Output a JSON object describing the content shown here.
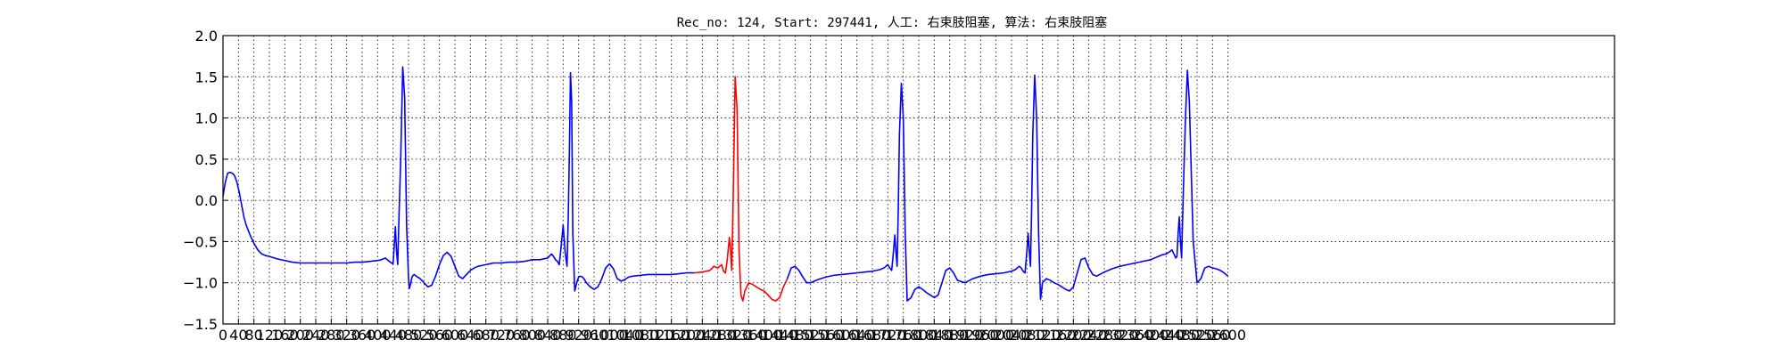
{
  "chart_data": {
    "type": "line",
    "title": "Rec_no: 124, Start: 297441, 人工: 右束肢阻塞, 算法: 右束肢阻塞",
    "xlabel": "",
    "ylabel": "",
    "xlim": [
      0,
      3600
    ],
    "ylim": [
      -1.5,
      2.0
    ],
    "grid": true,
    "x_tick_values": [
      0,
      40,
      80,
      120,
      160,
      200,
      240,
      280,
      320,
      360,
      400,
      440,
      480,
      520,
      560,
      600,
      640,
      680,
      720,
      760,
      800,
      840,
      880,
      920,
      960,
      1000,
      1040,
      1080,
      1120,
      1160,
      1200,
      1240,
      1280,
      1320,
      1360,
      1400,
      1440,
      1480,
      1520,
      1560,
      1600,
      1640,
      1680,
      1720,
      1760,
      1800,
      1840,
      1880,
      1920,
      1960,
      2000,
      2040,
      2080,
      2120,
      2160,
      2200,
      2240,
      2280,
      2320,
      2360,
      2400,
      2440,
      2480,
      2520,
      2560,
      2600
    ],
    "x_tick_labels": [
      "0",
      "40",
      "80",
      "120",
      "160",
      "200",
      "240",
      "280",
      "320",
      "360",
      "400",
      "440",
      "480",
      "520",
      "560",
      "600",
      "640",
      "680",
      "720",
      "760",
      "800",
      "840",
      "880",
      "920",
      "960",
      "1000",
      "1040",
      "1080",
      "1120",
      "1160",
      "1200",
      "1240",
      "1280",
      "1320",
      "1360",
      "1400",
      "1440",
      "1480",
      "1520",
      "1560",
      "1600",
      "1640",
      "1680",
      "1720",
      "1760",
      "1800",
      "1840",
      "1880",
      "1920",
      "1960",
      "2000",
      "2040",
      "2080",
      "2120",
      "2160",
      "2200",
      "2240",
      "2280",
      "2320",
      "2360",
      "2400",
      "2440",
      "2480",
      "2520",
      "2560",
      "2600"
    ],
    "y_ticks": [
      2.0,
      1.5,
      1.0,
      0.5,
      0.0,
      -0.5,
      -1.0,
      -1.5
    ],
    "y_tick_labels": [
      "2.0",
      "1.5",
      "1.0",
      "0.5",
      "0.0",
      "−0.5",
      "−1.0",
      "−1.5"
    ],
    "series": [
      {
        "color": "#0000ff",
        "x": [
          0,
          6,
          12,
          18,
          24,
          30,
          36,
          42,
          48,
          54,
          60,
          70,
          80,
          90,
          100,
          110,
          120,
          140,
          160,
          180,
          200,
          220,
          240,
          260,
          280,
          300,
          320,
          340,
          360,
          380,
          400,
          410,
          420,
          430,
          440,
          443,
          446,
          449,
          452,
          455,
          460,
          465,
          470,
          475,
          480,
          482,
          485,
          488,
          490,
          492,
          495,
          500,
          510,
          520,
          530,
          540,
          550,
          560,
          570,
          580,
          590,
          600,
          610,
          620,
          630,
          640,
          650,
          660,
          670,
          680,
          690,
          700,
          720,
          740,
          760,
          780,
          800,
          820,
          840,
          850,
          855,
          860,
          865,
          870,
          875,
          880,
          885,
          890,
          893,
          896,
          899,
          902,
          905,
          910,
          915,
          920,
          925,
          930,
          935,
          940,
          950,
          960,
          970,
          980,
          990,
          1000,
          1010,
          1020,
          1030,
          1040,
          1050,
          1060,
          1080,
          1100,
          1120,
          1140,
          1160,
          1180,
          1200,
          1220
        ],
        "y": [
          0.05,
          0.22,
          0.33,
          0.34,
          0.33,
          0.3,
          0.22,
          0.1,
          -0.05,
          -0.2,
          -0.3,
          -0.42,
          -0.52,
          -0.6,
          -0.65,
          -0.67,
          -0.68,
          -0.71,
          -0.73,
          -0.75,
          -0.76,
          -0.76,
          -0.76,
          -0.76,
          -0.76,
          -0.76,
          -0.76,
          -0.75,
          -0.75,
          -0.74,
          -0.73,
          -0.72,
          -0.7,
          -0.74,
          -0.77,
          -0.55,
          -0.32,
          -0.62,
          -0.78,
          -0.25,
          0.55,
          1.62,
          1.25,
          -0.3,
          -0.95,
          -1.07,
          -1.02,
          -0.95,
          -0.92,
          -0.91,
          -0.9,
          -0.92,
          -0.95,
          -1.0,
          -1.05,
          -1.03,
          -0.92,
          -0.78,
          -0.67,
          -0.63,
          -0.68,
          -0.8,
          -0.92,
          -0.95,
          -0.9,
          -0.85,
          -0.82,
          -0.8,
          -0.79,
          -0.78,
          -0.77,
          -0.76,
          -0.76,
          -0.75,
          -0.75,
          -0.74,
          -0.72,
          -0.72,
          -0.7,
          -0.65,
          -0.68,
          -0.72,
          -0.74,
          -0.78,
          -0.55,
          -0.3,
          -0.62,
          -0.8,
          -0.25,
          0.55,
          1.55,
          1.2,
          -0.4,
          -1.1,
          -1.0,
          -0.93,
          -0.92,
          -0.93,
          -0.96,
          -1.0,
          -1.05,
          -1.08,
          -1.05,
          -0.95,
          -0.82,
          -0.77,
          -0.83,
          -0.95,
          -0.98,
          -0.96,
          -0.93,
          -0.92,
          -0.91,
          -0.9,
          -0.9,
          -0.9,
          -0.9,
          -0.89,
          -0.88,
          -0.88
        ]
      },
      {
        "color": "#ff0000",
        "x": [
          1220,
          1240,
          1260,
          1270,
          1280,
          1290,
          1295,
          1300,
          1305,
          1310,
          1313,
          1316,
          1319,
          1322,
          1325,
          1330,
          1335,
          1340,
          1345,
          1350,
          1360,
          1370,
          1380,
          1390,
          1400,
          1410,
          1420,
          1430,
          1440,
          1450,
          1460
        ],
        "y": [
          -0.88,
          -0.87,
          -0.85,
          -0.8,
          -0.82,
          -0.78,
          -0.86,
          -0.88,
          -0.7,
          -0.45,
          -0.6,
          -0.85,
          -0.2,
          0.6,
          1.5,
          1.1,
          -0.6,
          -1.15,
          -1.22,
          -1.1,
          -1.0,
          -1.02,
          -1.05,
          -1.08,
          -1.1,
          -1.15,
          -1.2,
          -1.22,
          -1.18,
          -1.05,
          -0.95
        ]
      },
      {
        "color": "#0000ff",
        "x": [
          1460,
          1470,
          1480,
          1490,
          1500,
          1510,
          1520,
          1540,
          1560,
          1580,
          1600,
          1620,
          1640,
          1660,
          1680,
          1700,
          1710,
          1720,
          1725,
          1730,
          1735,
          1738,
          1741,
          1744,
          1747,
          1750,
          1755,
          1760,
          1765,
          1770,
          1780,
          1790,
          1800,
          1810,
          1820,
          1830,
          1840,
          1850,
          1860,
          1870,
          1880,
          1890,
          1900,
          1920,
          1940,
          1960,
          1980,
          2000,
          2020,
          2040,
          2050,
          2060,
          2065,
          2070,
          2075,
          2080,
          2083,
          2086,
          2089,
          2092,
          2095,
          2100,
          2105,
          2110,
          2115,
          2120,
          2130,
          2140,
          2150,
          2160,
          2170,
          2180,
          2190,
          2200,
          2210,
          2220,
          2230,
          2240,
          2250,
          2260,
          2280,
          2300,
          2320,
          2340,
          2360,
          2380,
          2400,
          2410,
          2420,
          2430,
          2440,
          2450,
          2455,
          2460,
          2465,
          2468,
          2471,
          2474,
          2477,
          2480,
          2485,
          2490,
          2495,
          2500,
          2510,
          2520,
          2530,
          2540,
          2550,
          2560,
          2570,
          2580,
          2590,
          2600
        ],
        "y": [
          -0.95,
          -0.82,
          -0.8,
          -0.85,
          -0.93,
          -1.0,
          -1.0,
          -0.96,
          -0.93,
          -0.91,
          -0.9,
          -0.89,
          -0.88,
          -0.87,
          -0.86,
          -0.84,
          -0.82,
          -0.78,
          -0.82,
          -0.85,
          -0.6,
          -0.42,
          -0.62,
          -0.8,
          -0.1,
          0.8,
          1.42,
          1.0,
          -0.4,
          -1.22,
          -1.18,
          -1.08,
          -1.05,
          -1.08,
          -1.12,
          -1.15,
          -1.18,
          -1.15,
          -1.0,
          -0.85,
          -0.82,
          -0.88,
          -0.97,
          -1.0,
          -0.95,
          -0.92,
          -0.9,
          -0.89,
          -0.88,
          -0.86,
          -0.84,
          -0.8,
          -0.82,
          -0.86,
          -0.88,
          -0.6,
          -0.4,
          -0.62,
          -0.8,
          -0.1,
          0.8,
          1.52,
          1.0,
          -0.4,
          -1.2,
          -1.0,
          -0.95,
          -0.97,
          -1.0,
          -1.02,
          -1.05,
          -1.08,
          -1.1,
          -1.05,
          -0.88,
          -0.72,
          -0.7,
          -0.82,
          -0.9,
          -0.92,
          -0.87,
          -0.83,
          -0.8,
          -0.78,
          -0.76,
          -0.74,
          -0.72,
          -0.7,
          -0.68,
          -0.66,
          -0.65,
          -0.62,
          -0.6,
          -0.65,
          -0.7,
          -0.68,
          -0.4,
          -0.2,
          -0.5,
          -0.7,
          0.2,
          1.0,
          1.58,
          1.2,
          -0.5,
          -1.0,
          -0.95,
          -0.82,
          -0.8,
          -0.82,
          -0.83,
          -0.85,
          -0.88,
          -0.92
        ]
      }
    ]
  }
}
